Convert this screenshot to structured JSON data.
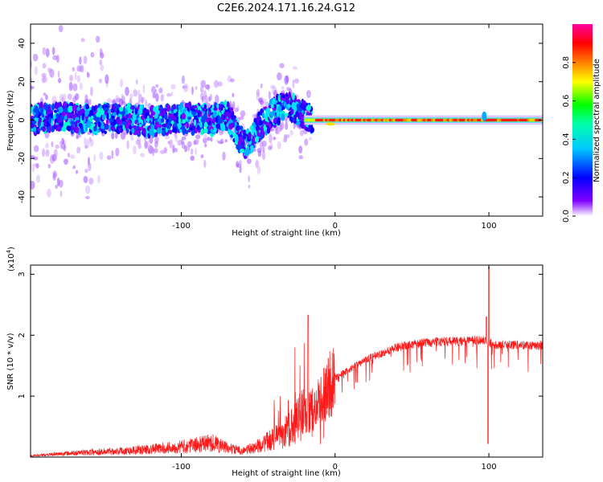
{
  "title": "C2E6.2024.171.16.24.G12",
  "chart_data": [
    {
      "type": "heatmap",
      "xlabel": "Height of straight line (km)",
      "ylabel": "Frequency (Hz)",
      "xlim": [
        -198,
        135
      ],
      "ylim": [
        -50,
        50
      ],
      "xticks": [
        -100,
        0,
        100
      ],
      "yticks": [
        -40,
        -20,
        0,
        20,
        40
      ],
      "colorbar": {
        "label": "Normalized spectral amplitude",
        "range": [
          0,
          1
        ],
        "ticks": [
          0.0,
          0.2,
          0.4,
          0.6,
          0.8
        ],
        "colormap": [
          "#ffffff",
          "#7f00ff",
          "#0000ff",
          "#00ffff",
          "#00ff00",
          "#ffff00",
          "#ff8000",
          "#ff0000",
          "#ff00a0"
        ]
      },
      "ridge": {
        "x": [
          -198,
          -180,
          -160,
          -140,
          -120,
          -100,
          -80,
          -70,
          -62,
          -58,
          -50,
          -40,
          -30,
          -20,
          -10,
          -5,
          0,
          10,
          50,
          95,
          97,
          100,
          135
        ],
        "y": [
          0,
          2,
          0,
          1,
          -1,
          1,
          0,
          3,
          -10,
          -14,
          -4,
          4,
          8,
          2,
          0,
          -2,
          -2,
          0,
          0,
          -1,
          3,
          0,
          0
        ]
      }
    },
    {
      "type": "line",
      "xlabel": "Height of straight line (km)",
      "ylabel": "SNR (10 * v/v)",
      "y_multiplier": "(x10",
      "y_multiplier_exp": "4",
      "y_multiplier_close": ")",
      "xlim": [
        -198,
        135
      ],
      "ylim": [
        0,
        3.15
      ],
      "xticks": [
        -100,
        0,
        100
      ],
      "yticks": [
        1,
        2,
        3
      ],
      "color": "#ff0000",
      "series": [
        {
          "x": [
            -198,
            -180,
            -160,
            -140,
            -120,
            -100,
            -90,
            -80,
            -70,
            -60,
            -50,
            -40,
            -30,
            -25,
            -20,
            -15,
            -10,
            -5,
            0,
            10,
            20,
            30,
            40,
            50,
            60,
            70,
            80,
            90,
            95,
            98,
            100,
            102,
            110,
            120,
            135
          ],
          "y": [
            0.02,
            0.05,
            0.08,
            0.1,
            0.13,
            0.17,
            0.2,
            0.24,
            0.15,
            0.1,
            0.18,
            0.3,
            0.45,
            0.6,
            0.75,
            0.8,
            0.95,
            1.25,
            1.3,
            1.45,
            1.6,
            1.7,
            1.8,
            1.85,
            1.88,
            1.9,
            1.9,
            1.92,
            1.92,
            1.9,
            1.88,
            1.85,
            1.84,
            1.84,
            1.83
          ]
        }
      ]
    }
  ]
}
